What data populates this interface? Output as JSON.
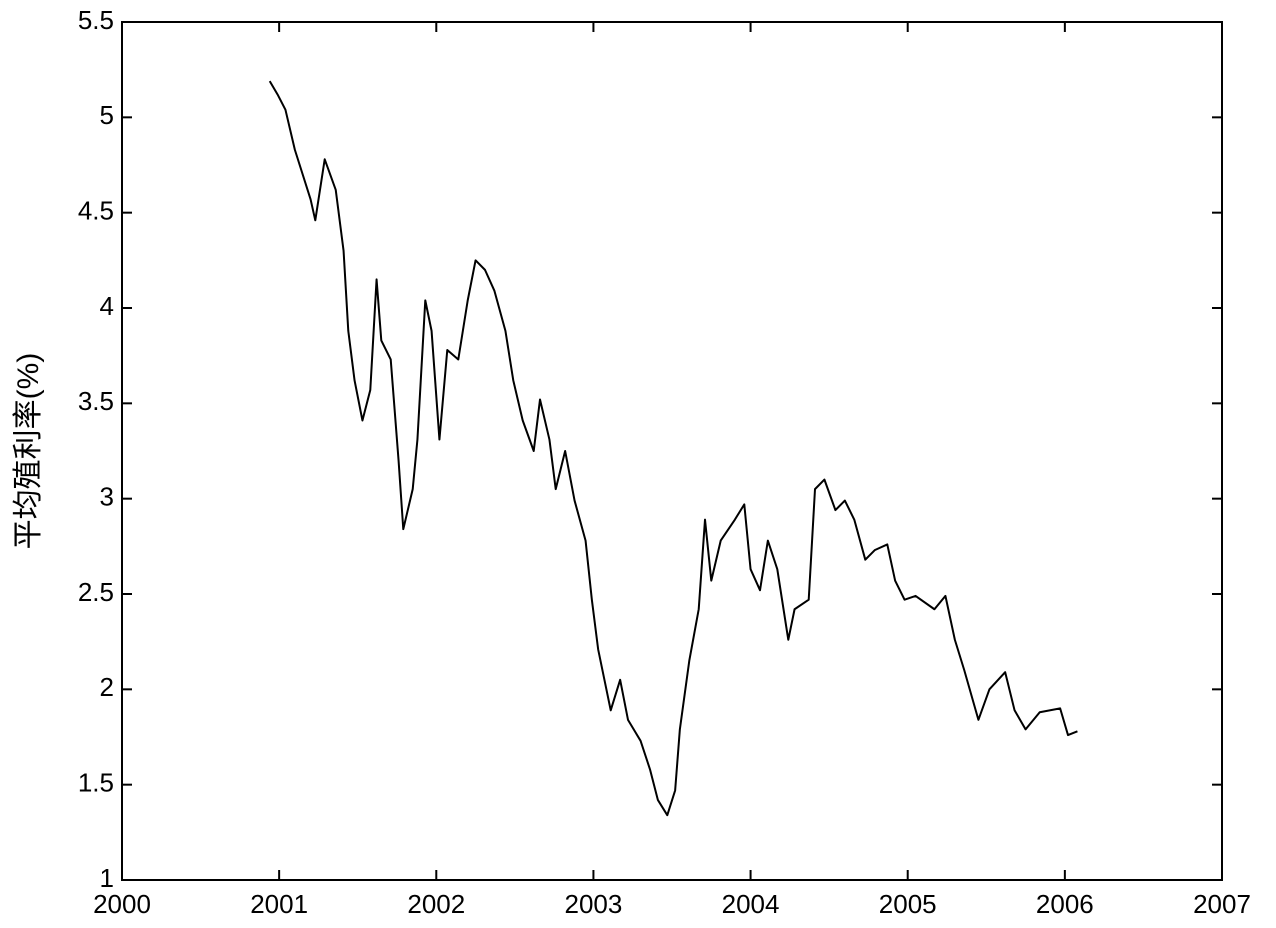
{
  "chart_data": {
    "type": "line",
    "y_label": "平均殖利率(%)",
    "xlim": [
      2000,
      2007
    ],
    "xticks": [
      2000,
      2001,
      2002,
      2003,
      2004,
      2005,
      2006,
      2007
    ],
    "ylim": [
      1,
      5.5
    ],
    "yticks": [
      1,
      1.5,
      2,
      2.5,
      3,
      3.5,
      4,
      4.5,
      5,
      5.5
    ],
    "grid": false,
    "series": [
      {
        "color": "#000000",
        "x": [
          2000.94,
          2000.99,
          2001.04,
          2001.1,
          2001.2,
          2001.23,
          2001.29,
          2001.36,
          2001.41,
          2001.44,
          2001.48,
          2001.53,
          2001.58,
          2001.62,
          2001.65,
          2001.71,
          2001.76,
          2001.79,
          2001.85,
          2001.88,
          2001.93,
          2001.97,
          2002.02,
          2002.07,
          2002.14,
          2002.2,
          2002.25,
          2002.31,
          2002.37,
          2002.44,
          2002.49,
          2002.55,
          2002.62,
          2002.66,
          2002.72,
          2002.76,
          2002.82,
          2002.88,
          2002.95,
          2002.99,
          2003.03,
          2003.07,
          2003.11,
          2003.17,
          2003.22,
          2003.3,
          2003.36,
          2003.41,
          2003.47,
          2003.52,
          2003.55,
          2003.61,
          2003.67,
          2003.71,
          2003.75,
          2003.81,
          2003.9,
          2003.96,
          2004.0,
          2004.06,
          2004.11,
          2004.17,
          2004.24,
          2004.28,
          2004.37,
          2004.41,
          2004.47,
          2004.54,
          2004.6,
          2004.66,
          2004.73,
          2004.79,
          2004.87,
          2004.92,
          2004.98,
          2005.05,
          2005.17,
          2005.24,
          2005.3,
          2005.36,
          2005.45,
          2005.52,
          2005.62,
          2005.68,
          2005.75,
          2005.84,
          2005.97,
          2006.02,
          2006.08
        ],
        "values": [
          5.19,
          5.12,
          5.04,
          4.83,
          4.57,
          4.46,
          4.78,
          4.62,
          4.3,
          3.88,
          3.62,
          3.41,
          3.57,
          4.15,
          3.83,
          3.73,
          3.2,
          2.84,
          3.05,
          3.31,
          4.04,
          3.88,
          3.31,
          3.78,
          3.73,
          4.04,
          4.25,
          4.2,
          4.09,
          3.88,
          3.62,
          3.41,
          3.25,
          3.52,
          3.31,
          3.05,
          3.25,
          2.99,
          2.78,
          2.47,
          2.21,
          2.05,
          1.89,
          2.05,
          1.84,
          1.73,
          1.58,
          1.42,
          1.34,
          1.47,
          1.79,
          2.15,
          2.42,
          2.89,
          2.57,
          2.78,
          2.89,
          2.97,
          2.63,
          2.52,
          2.78,
          2.63,
          2.26,
          2.42,
          2.47,
          3.05,
          3.1,
          2.94,
          2.99,
          2.89,
          2.68,
          2.73,
          2.76,
          2.57,
          2.47,
          2.49,
          2.42,
          2.49,
          2.26,
          2.1,
          1.84,
          2.0,
          2.09,
          1.89,
          1.79,
          1.88,
          1.9,
          1.76,
          1.78
        ]
      }
    ]
  }
}
